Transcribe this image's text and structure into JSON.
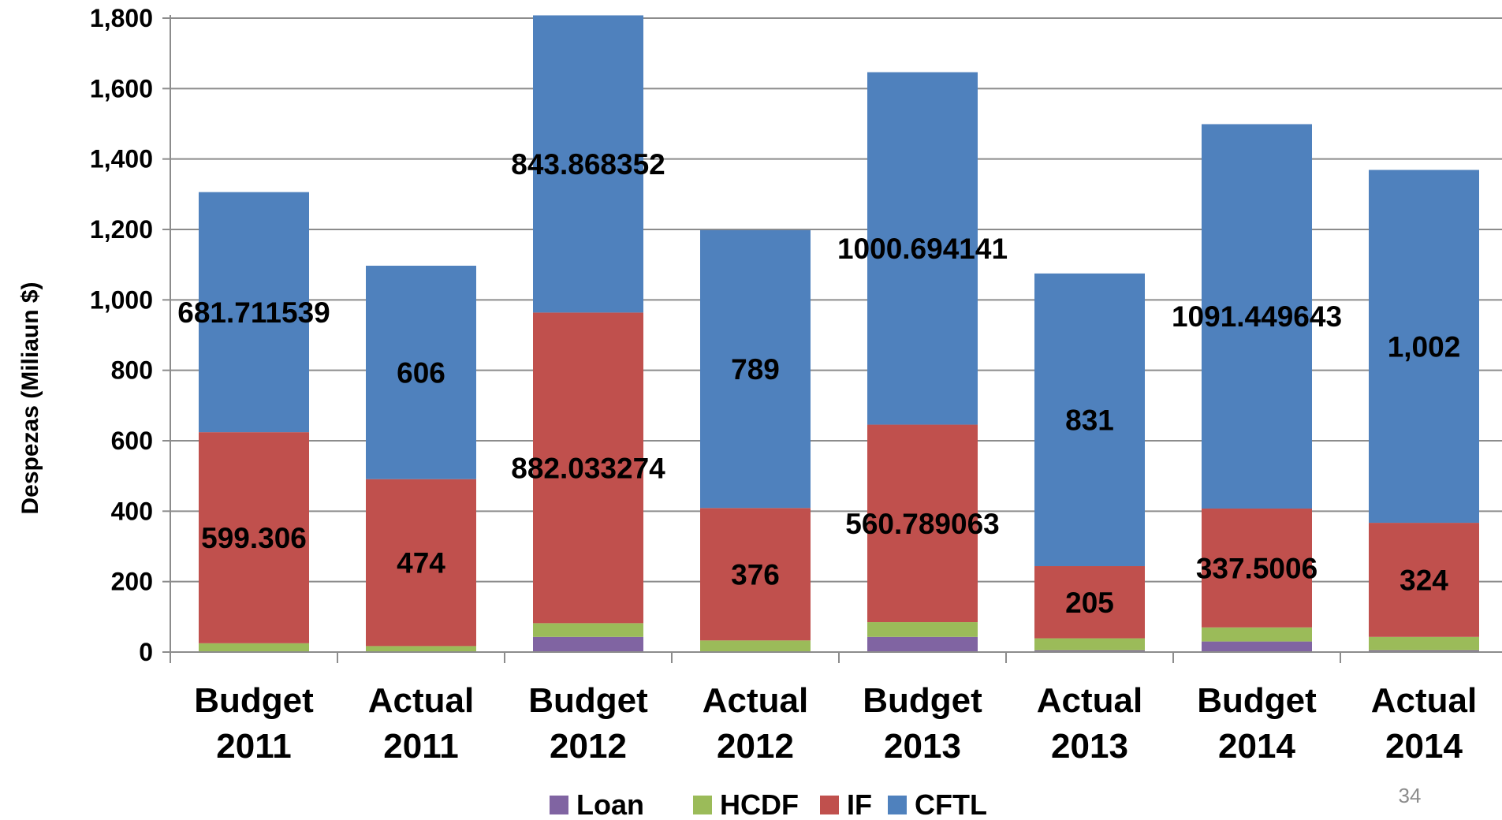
{
  "page_number": "34",
  "chart_data": {
    "type": "bar",
    "stacked": true,
    "title": "",
    "xlabel": "",
    "ylabel": "Despezas (Miliaun $)",
    "ylim": [
      0,
      1800
    ],
    "yticks": [
      0,
      200,
      400,
      600,
      800,
      1000,
      1200,
      1400,
      1600,
      1800
    ],
    "ytick_labels": [
      "0",
      "200",
      "400",
      "600",
      "800",
      "1,000",
      "1,200",
      "1,400",
      "1,600",
      "1,800"
    ],
    "grid": true,
    "legend_position": "bottom",
    "categories": [
      [
        "Budget",
        "2011"
      ],
      [
        "Actual",
        "2011"
      ],
      [
        "Budget",
        "2012"
      ],
      [
        "Actual",
        "2012"
      ],
      [
        "Budget",
        "2013"
      ],
      [
        "Actual",
        "2013"
      ],
      [
        "Budget",
        "2014"
      ],
      [
        "Actual",
        "2014"
      ]
    ],
    "series": [
      {
        "name": "Loan",
        "color": "#8064a2",
        "values": [
          0,
          0,
          43,
          0,
          43,
          5,
          30,
          5
        ],
        "labels": [
          "",
          "",
          "",
          "",
          "",
          "",
          "",
          ""
        ]
      },
      {
        "name": "HCDF",
        "color": "#9bbb59",
        "values": [
          25,
          17,
          39,
          33,
          42,
          34,
          40,
          38
        ],
        "labels": [
          "",
          "",
          "",
          "",
          "",
          "",
          "",
          ""
        ]
      },
      {
        "name": "IF",
        "color": "#c0504d",
        "values": [
          599.306,
          474,
          882.033274,
          376,
          560.789063,
          205,
          337.5006,
          324
        ],
        "labels": [
          "599.306",
          "474",
          "882.033274",
          "376",
          "560.789063",
          "205",
          "337.5006",
          "324"
        ]
      },
      {
        "name": "CFTL",
        "color": "#4f81bd",
        "values": [
          681.711539,
          606,
          843.868352,
          789,
          1000.694141,
          831,
          1091.449643,
          1002
        ],
        "labels": [
          "681.711539",
          "606",
          "843.868352",
          "789",
          "1000.694141",
          "831",
          "1091.449643",
          "1,002"
        ]
      }
    ]
  }
}
